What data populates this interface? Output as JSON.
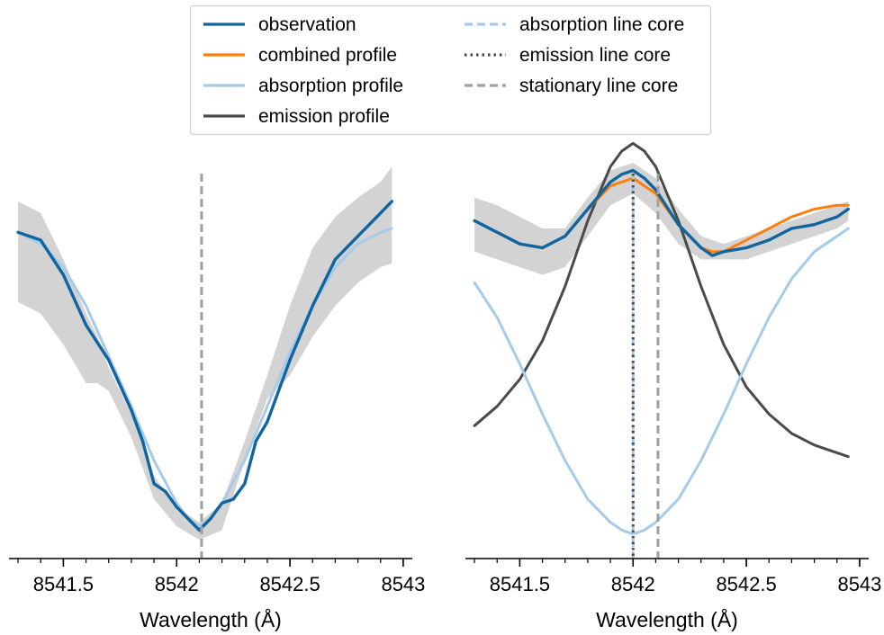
{
  "colors": {
    "observation": "#1065a0",
    "combined": "#ff7f0e",
    "absorption": "#a6cbea",
    "emission": "#4a4a4a",
    "stationary": "#a0a0a0",
    "band": "#d3d3d3"
  },
  "legend": {
    "items": [
      {
        "label": "observation",
        "key": "observation",
        "style": "solid"
      },
      {
        "label": "combined profile",
        "key": "combined",
        "style": "solid"
      },
      {
        "label": "absorption profile",
        "key": "absorption",
        "style": "solid"
      },
      {
        "label": "emission profile",
        "key": "emission",
        "style": "solid"
      },
      {
        "label": "absorption line core",
        "key": "absorption",
        "style": "dashed"
      },
      {
        "label": "emission line core",
        "key": "emission",
        "style": "dotted"
      },
      {
        "label": "stationary line core",
        "key": "stationary",
        "style": "dashed"
      }
    ]
  },
  "chart_data": [
    {
      "type": "line",
      "xlabel": "Wavelength (Å)",
      "xlim": [
        8541.26,
        8543.04
      ],
      "ylim": [
        0,
        1
      ],
      "x_ticks": [
        8541.5,
        8542,
        8542.5,
        8543
      ],
      "x_tick_labels": [
        "8541.5",
        "8542",
        "8542.5",
        "8543"
      ],
      "vlines": [
        {
          "x": 8542.11,
          "key": "absorption",
          "style": "dashed"
        },
        {
          "x": 8542.11,
          "key": "stationary",
          "style": "dashed"
        }
      ],
      "band": {
        "x": [
          8541.3,
          8541.4,
          8541.5,
          8541.6,
          8541.65,
          8541.7,
          8541.8,
          8541.9,
          8542.0,
          8542.1,
          8542.2,
          8542.3,
          8542.4,
          8542.5,
          8542.6,
          8542.7,
          8542.8,
          8542.9,
          8542.95
        ],
        "upper": [
          0.87,
          0.84,
          0.72,
          0.58,
          0.52,
          0.44,
          0.32,
          0.16,
          0.08,
          0.04,
          0.09,
          0.25,
          0.42,
          0.6,
          0.75,
          0.83,
          0.88,
          0.92,
          0.96
        ],
        "lower": [
          0.61,
          0.58,
          0.5,
          0.4,
          0.4,
          0.38,
          0.26,
          0.1,
          0.03,
          -0.005,
          0.02,
          0.2,
          0.36,
          0.42,
          0.52,
          0.6,
          0.66,
          0.7,
          0.71
        ]
      },
      "series": [
        {
          "name": "observation",
          "key": "observation",
          "x": [
            8541.3,
            8541.4,
            8541.5,
            8541.6,
            8541.7,
            8541.8,
            8541.85,
            8541.9,
            8541.95,
            8542.0,
            8542.05,
            8542.1,
            8542.15,
            8542.2,
            8542.25,
            8542.3,
            8542.35,
            8542.4,
            8542.5,
            8542.6,
            8542.7,
            8542.8,
            8542.9,
            8542.95
          ],
          "y": [
            0.79,
            0.77,
            0.68,
            0.55,
            0.46,
            0.33,
            0.25,
            0.14,
            0.12,
            0.08,
            0.05,
            0.02,
            0.05,
            0.09,
            0.1,
            0.14,
            0.25,
            0.3,
            0.46,
            0.6,
            0.72,
            0.78,
            0.84,
            0.87
          ]
        },
        {
          "name": "absorption profile",
          "key": "absorption",
          "x": [
            8541.3,
            8541.4,
            8541.5,
            8541.6,
            8541.7,
            8541.8,
            8541.9,
            8542.0,
            8542.05,
            8542.1,
            8542.15,
            8542.2,
            8542.3,
            8542.4,
            8542.5,
            8542.6,
            8542.7,
            8542.8,
            8542.9,
            8542.95
          ],
          "y": [
            0.79,
            0.76,
            0.7,
            0.6,
            0.47,
            0.34,
            0.2,
            0.09,
            0.05,
            0.03,
            0.05,
            0.09,
            0.2,
            0.34,
            0.48,
            0.6,
            0.7,
            0.76,
            0.79,
            0.8
          ]
        }
      ]
    },
    {
      "type": "line",
      "xlabel": "Wavelength (Å)",
      "xlim": [
        8541.26,
        8543.04
      ],
      "ylim": [
        0,
        1
      ],
      "x_ticks": [
        8541.5,
        8542,
        8542.5,
        8543
      ],
      "x_tick_labels": [
        "8541.5",
        "8542",
        "8542.5",
        "8543"
      ],
      "vlines": [
        {
          "x": 8542.0,
          "key": "absorption",
          "style": "dashed"
        },
        {
          "x": 8542.0,
          "key": "emission",
          "style": "dotted"
        },
        {
          "x": 8542.11,
          "key": "stationary",
          "style": "dashed"
        }
      ],
      "band": {
        "x": [
          8541.3,
          8541.4,
          8541.5,
          8541.6,
          8541.7,
          8541.8,
          8541.9,
          8542.0,
          8542.1,
          8542.2,
          8542.3,
          8542.4,
          8542.5,
          8542.6,
          8542.7,
          8542.8,
          8542.9,
          8542.95
        ],
        "upper": [
          0.88,
          0.86,
          0.83,
          0.8,
          0.8,
          0.88,
          0.95,
          0.97,
          0.93,
          0.85,
          0.78,
          0.76,
          0.78,
          0.8,
          0.82,
          0.84,
          0.86,
          0.87
        ],
        "lower": [
          0.74,
          0.72,
          0.7,
          0.68,
          0.7,
          0.78,
          0.86,
          0.89,
          0.84,
          0.76,
          0.72,
          0.72,
          0.72,
          0.74,
          0.76,
          0.78,
          0.8,
          0.82
        ]
      },
      "series": [
        {
          "name": "observation",
          "key": "observation",
          "x": [
            8541.3,
            8541.4,
            8541.5,
            8541.6,
            8541.7,
            8541.8,
            8541.9,
            8541.95,
            8542.0,
            8542.05,
            8542.1,
            8542.2,
            8542.3,
            8542.35,
            8542.4,
            8542.5,
            8542.6,
            8542.7,
            8542.8,
            8542.9,
            8542.95
          ],
          "y": [
            0.82,
            0.79,
            0.76,
            0.75,
            0.78,
            0.85,
            0.92,
            0.94,
            0.95,
            0.93,
            0.9,
            0.81,
            0.75,
            0.73,
            0.74,
            0.75,
            0.77,
            0.8,
            0.81,
            0.83,
            0.85
          ]
        },
        {
          "name": "combined profile",
          "key": "combined",
          "x": [
            8541.3,
            8541.4,
            8541.5,
            8541.6,
            8541.7,
            8541.8,
            8541.9,
            8542.0,
            8542.1,
            8542.2,
            8542.3,
            8542.35,
            8542.4,
            8542.5,
            8542.6,
            8542.7,
            8542.8,
            8542.9,
            8542.95
          ],
          "y": [
            0.82,
            0.79,
            0.76,
            0.75,
            0.78,
            0.85,
            0.91,
            0.93,
            0.89,
            0.81,
            0.75,
            0.74,
            0.74,
            0.77,
            0.8,
            0.83,
            0.85,
            0.86,
            0.86
          ]
        },
        {
          "name": "absorption profile",
          "key": "absorption",
          "x": [
            8541.3,
            8541.4,
            8541.5,
            8541.6,
            8541.7,
            8541.8,
            8541.9,
            8541.95,
            8542.0,
            8542.05,
            8542.1,
            8542.2,
            8542.3,
            8542.4,
            8542.5,
            8542.6,
            8542.7,
            8542.8,
            8542.9,
            8542.95
          ],
          "y": [
            0.66,
            0.57,
            0.45,
            0.32,
            0.2,
            0.1,
            0.04,
            0.02,
            0.01,
            0.02,
            0.04,
            0.1,
            0.2,
            0.32,
            0.45,
            0.57,
            0.67,
            0.74,
            0.78,
            0.8
          ]
        },
        {
          "name": "emission profile",
          "key": "emission",
          "x": [
            8541.3,
            8541.4,
            8541.5,
            8541.6,
            8541.7,
            8541.8,
            8541.9,
            8541.95,
            8542.0,
            8542.05,
            8542.1,
            8542.2,
            8542.3,
            8542.4,
            8542.5,
            8542.6,
            8542.7,
            8542.8,
            8542.9,
            8542.95
          ],
          "y": [
            0.29,
            0.34,
            0.41,
            0.51,
            0.65,
            0.82,
            0.96,
            1.0,
            1.02,
            1.0,
            0.96,
            0.82,
            0.65,
            0.5,
            0.39,
            0.32,
            0.27,
            0.24,
            0.22,
            0.21
          ]
        }
      ]
    }
  ]
}
